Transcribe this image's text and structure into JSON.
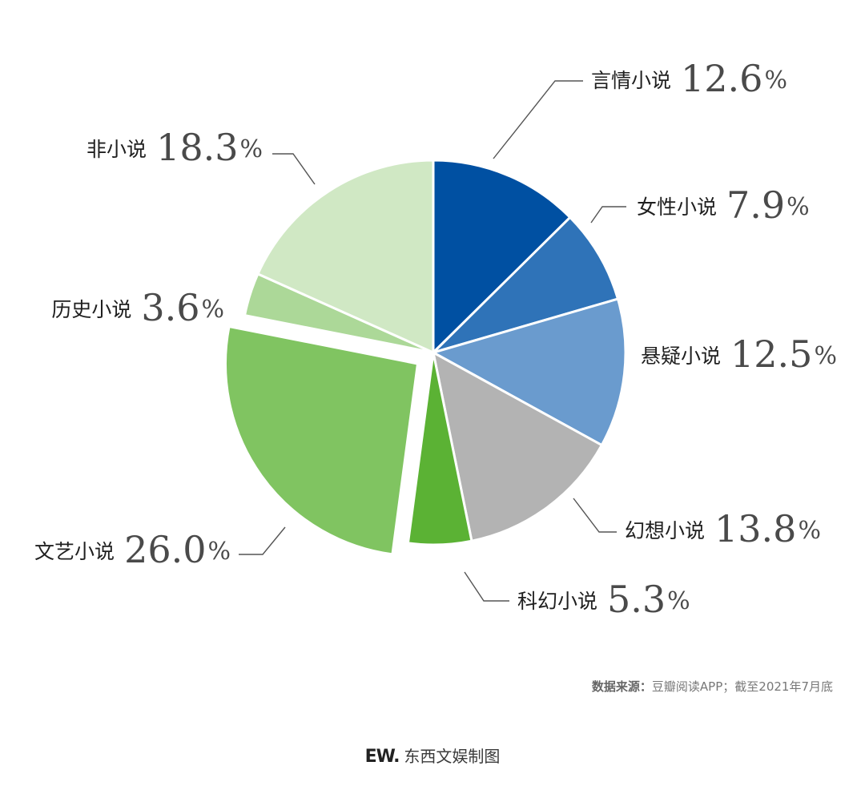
{
  "chart_data": {
    "type": "pie",
    "unit": "%",
    "slices": [
      {
        "label": "言情小说",
        "value": 12.6,
        "value_text": "12.6",
        "color": "#0050a2",
        "exploded": false
      },
      {
        "label": "女性小说",
        "value": 7.9,
        "value_text": "7.9",
        "color": "#2f73b8",
        "exploded": false
      },
      {
        "label": "悬疑小说",
        "value": 12.5,
        "value_text": "12.5",
        "color": "#6a9bce",
        "exploded": false
      },
      {
        "label": "幻想小说",
        "value": 13.8,
        "value_text": "13.8",
        "color": "#b3b3b3",
        "exploded": false
      },
      {
        "label": "科幻小说",
        "value": 5.3,
        "value_text": "5.3",
        "color": "#5bb234",
        "exploded": false
      },
      {
        "label": "文艺小说",
        "value": 26.0,
        "value_text": "26.0",
        "color": "#80c461",
        "exploded": true
      },
      {
        "label": "历史小说",
        "value": 3.6,
        "value_text": "3.6",
        "color": "#acd898",
        "exploded": false
      },
      {
        "label": "非小说",
        "value": 18.3,
        "value_text": "18.3",
        "color": "#d0e8c4",
        "exploded": false
      }
    ]
  },
  "footer": {
    "source_label": "数据来源：",
    "source_text": "豆瓣阅读APP；截至2021年7月底",
    "logo_text": "EW.",
    "credit_text": "东西文娱制图"
  }
}
